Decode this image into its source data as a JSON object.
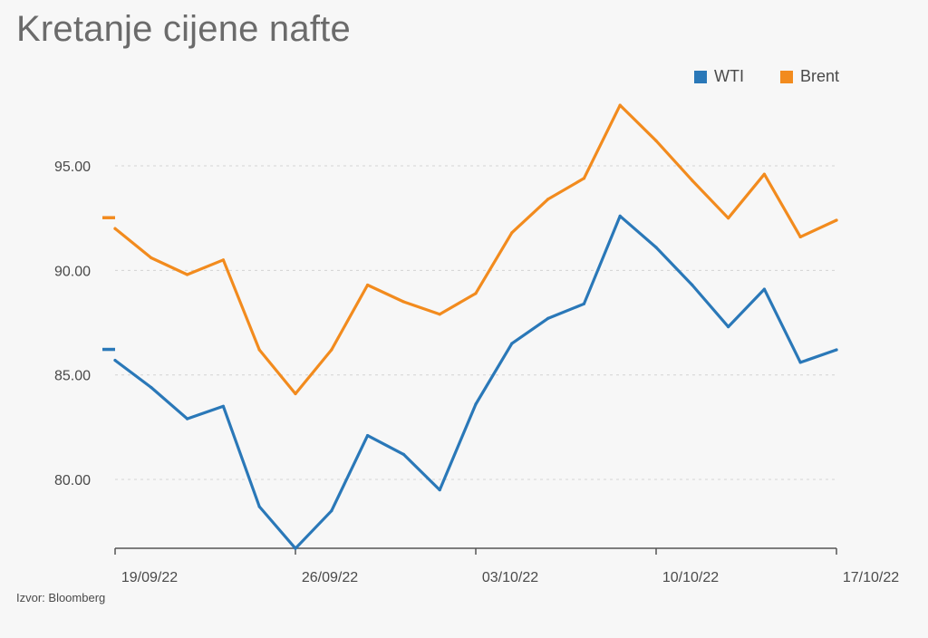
{
  "title": "Kretanje cijene nafte",
  "source": "Izvor: Bloomberg",
  "legend": [
    {
      "label": "WTI",
      "color": "#2a78b8"
    },
    {
      "label": "Brent",
      "color": "#f28b1e"
    }
  ],
  "chart_data": {
    "type": "line",
    "title": "Kretanje cijene nafte",
    "xlabel": "",
    "ylabel": "",
    "ylim": [
      76.7,
      98.5
    ],
    "xlim": [
      "19/09/22",
      "17/10/22"
    ],
    "grid": true,
    "legend_position": "top-right",
    "x": [
      "19/09/22",
      "20/09/22",
      "21/09/22",
      "22/09/22",
      "23/09/22",
      "26/09/22",
      "27/09/22",
      "28/09/22",
      "29/09/22",
      "30/09/22",
      "03/10/22",
      "04/10/22",
      "05/10/22",
      "06/10/22",
      "07/10/22",
      "10/10/22",
      "11/10/22",
      "12/10/22",
      "13/10/22",
      "14/10/22",
      "17/10/22"
    ],
    "x_ticks": [
      "19/09/22",
      "26/09/22",
      "03/10/22",
      "10/10/22",
      "17/10/22"
    ],
    "y_ticks": [
      "80.00",
      "85.00",
      "90.00",
      "95.00"
    ],
    "y_tick_values": [
      80,
      85,
      90,
      95
    ],
    "series": [
      {
        "name": "WTI",
        "color": "#2a78b8",
        "values": [
          85.7,
          84.4,
          82.9,
          83.5,
          78.7,
          76.7,
          78.5,
          82.1,
          81.2,
          79.5,
          83.6,
          86.5,
          87.7,
          88.4,
          92.6,
          91.1,
          89.3,
          87.3,
          89.1,
          85.6,
          86.2
        ]
      },
      {
        "name": "Brent",
        "color": "#f28b1e",
        "values": [
          92.0,
          90.6,
          89.8,
          90.5,
          86.2,
          84.1,
          86.2,
          89.3,
          88.5,
          87.9,
          88.9,
          91.8,
          93.4,
          94.4,
          97.9,
          96.2,
          94.3,
          92.5,
          94.6,
          91.6,
          92.4
        ]
      }
    ]
  }
}
